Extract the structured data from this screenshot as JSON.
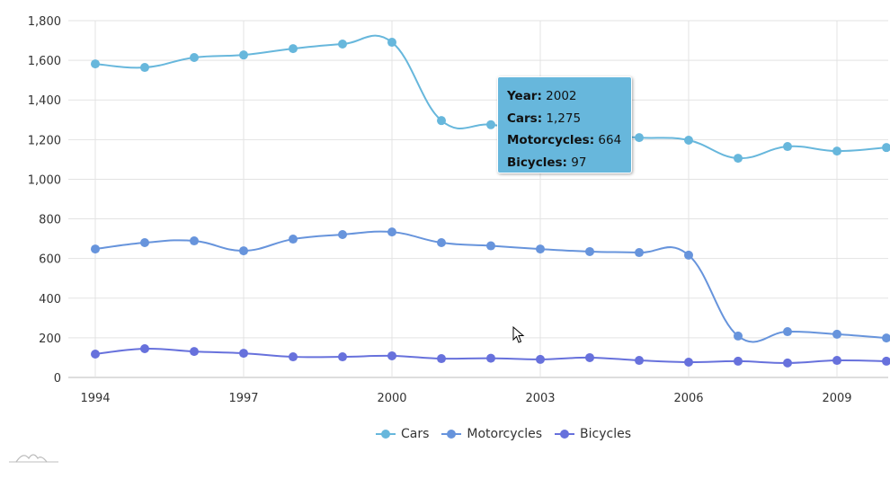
{
  "chart_data": {
    "type": "line",
    "x": [
      1994,
      1995,
      1996,
      1997,
      1998,
      1999,
      2000,
      2001,
      2002,
      2003,
      2004,
      2005,
      2006,
      2007,
      2008,
      2009,
      2010
    ],
    "series": [
      {
        "name": "Cars",
        "color": "#67b7dc",
        "values": [
          1582,
          1564,
          1614,
          1627,
          1659,
          1682,
          1691,
          1296,
          1275,
          1240,
          1225,
          1210,
          1197,
          1106,
          1165,
          1142,
          1160
        ]
      },
      {
        "name": "Motorcycles",
        "color": "#6794dc",
        "values": [
          648,
          680,
          689,
          639,
          698,
          721,
          734,
          680,
          664,
          648,
          635,
          630,
          617,
          209,
          231,
          218,
          199
        ]
      },
      {
        "name": "Bicycles",
        "color": "#6771dc",
        "values": [
          118,
          145,
          131,
          122,
          104,
          104,
          109,
          95,
          97,
          91,
          100,
          86,
          77,
          82,
          73,
          86,
          82
        ]
      }
    ],
    "xticks": [
      "1994",
      "1997",
      "2000",
      "2003",
      "2006",
      "2009"
    ],
    "yticks": [
      "0",
      "200",
      "400",
      "600",
      "800",
      "1,000",
      "1,200",
      "1,400",
      "1,600",
      "1,800"
    ],
    "ylim": [
      0,
      1800
    ],
    "xlim": [
      1994,
      2010
    ],
    "grid": true,
    "legend": "bottom-center"
  },
  "tooltip": {
    "year_label": "Year:",
    "year": "2002",
    "cars_label": "Cars:",
    "cars": "1,275",
    "moto_label": "Motorcycles:",
    "moto": "664",
    "bike_label": "Bicycles:",
    "bike": "97"
  }
}
